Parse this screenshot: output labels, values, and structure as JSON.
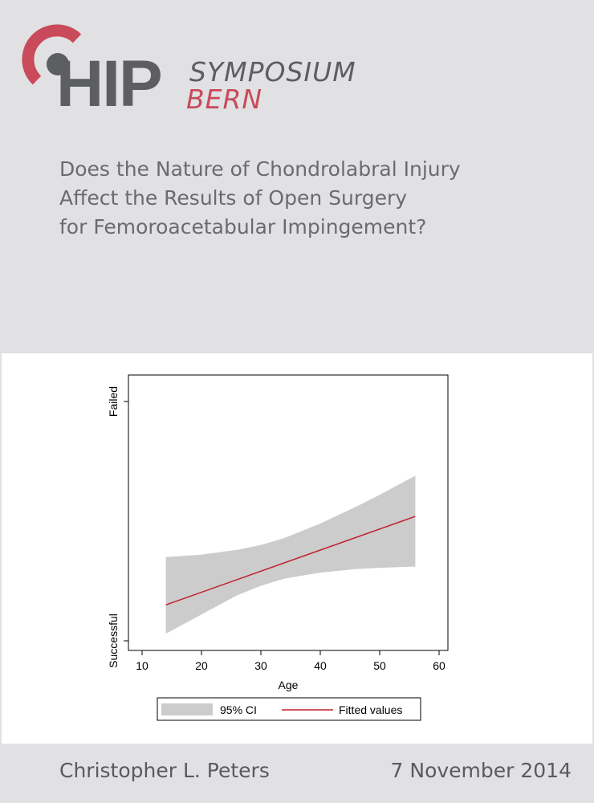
{
  "header": {
    "logo_hip": "HIP",
    "logo_symposium": "SYMPOSIUM",
    "logo_bern": "BERN",
    "title_lines": [
      "Does the Nature of Chondrolabral Injury",
      "Affect the Results of Open Surgery",
      "for Femoroacetabular Impingement?"
    ]
  },
  "colors": {
    "background": "#e1e1e3",
    "accent": "#c94a5a",
    "logo_gray": "#5d5e62",
    "ci_band": "#cccccc",
    "fitted_line": "#c0202c"
  },
  "chart_data": {
    "type": "area",
    "xlabel": "Age",
    "ylabel": "",
    "xlim": [
      10,
      60
    ],
    "xticks": [
      10,
      20,
      30,
      40,
      50,
      60
    ],
    "yticks": [
      {
        "label": "Successful",
        "value": 0
      },
      {
        "label": "Failed",
        "value": 1
      }
    ],
    "ylim": [
      0,
      1
    ],
    "grid": false,
    "legend_position": "bottom",
    "series": [
      {
        "name": "95% CI",
        "kind": "band",
        "x": [
          14,
          20,
          26,
          30,
          34,
          40,
          46,
          50,
          56
        ],
        "lower": [
          0.03,
          0.11,
          0.19,
          0.23,
          0.26,
          0.285,
          0.3,
          0.305,
          0.31
        ],
        "upper": [
          0.35,
          0.36,
          0.38,
          0.4,
          0.43,
          0.49,
          0.56,
          0.61,
          0.69
        ]
      },
      {
        "name": "Fitted values",
        "kind": "line",
        "x": [
          14,
          56
        ],
        "y": [
          0.15,
          0.52
        ]
      }
    ]
  },
  "footer": {
    "author": "Christopher L. Peters",
    "date": "7 November 2014"
  }
}
